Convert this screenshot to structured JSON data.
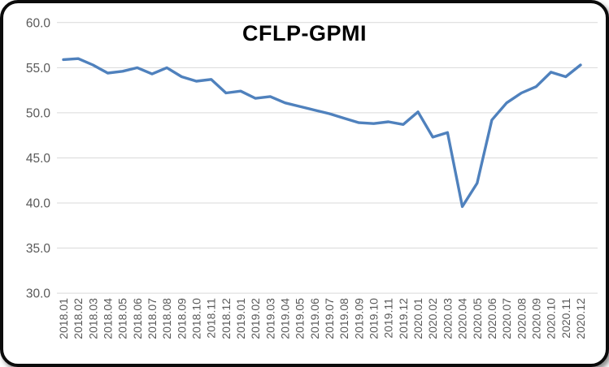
{
  "chart": {
    "title": "CFLP-GPMI",
    "line_color": "#4F81BD",
    "gridline_color": "#D9D9D9",
    "axis_label_color": "#595959",
    "title_color": "#000000",
    "background_color": "#FFFFFF",
    "frame_border_color": "#0B0B0B"
  },
  "chart_data": {
    "type": "line",
    "title": "CFLP-GPMI",
    "series_name": "CFLP-GPMI",
    "legend": "none",
    "grid": "horizontal",
    "ylim": [
      30.0,
      60.0
    ],
    "ytick_interval": 5.0,
    "ytick_labels": [
      "60.0",
      "55.0",
      "50.0",
      "45.0",
      "40.0",
      "35.0",
      "30.0"
    ],
    "categories": [
      "2018.01",
      "2018.02",
      "2018.03",
      "2018.04",
      "2018.05",
      "2018.06",
      "2018.07",
      "2018.08",
      "2018.09",
      "2018.10",
      "2018.11",
      "2018.12",
      "2019.01",
      "2019.02",
      "2019.03",
      "2019.04",
      "2019.05",
      "2019.06",
      "2019.07",
      "2019.08",
      "2019.09",
      "2019.10",
      "2019.11",
      "2019.12",
      "2020.01",
      "2020.02",
      "2020.03",
      "2020.04",
      "2020.05",
      "2020.06",
      "2020.07",
      "2020.08",
      "2020.09",
      "2020.10",
      "2020.11",
      "2020.12"
    ],
    "values": [
      55.9,
      56.0,
      55.3,
      54.4,
      54.6,
      55.0,
      54.3,
      55.0,
      54.0,
      53.5,
      53.7,
      52.2,
      52.4,
      51.6,
      51.8,
      51.1,
      50.7,
      50.3,
      49.9,
      49.4,
      48.9,
      48.8,
      49.0,
      48.7,
      50.1,
      47.3,
      47.8,
      39.6,
      42.2,
      49.2,
      51.1,
      52.2,
      52.9,
      54.5,
      54.0,
      55.3
    ]
  }
}
